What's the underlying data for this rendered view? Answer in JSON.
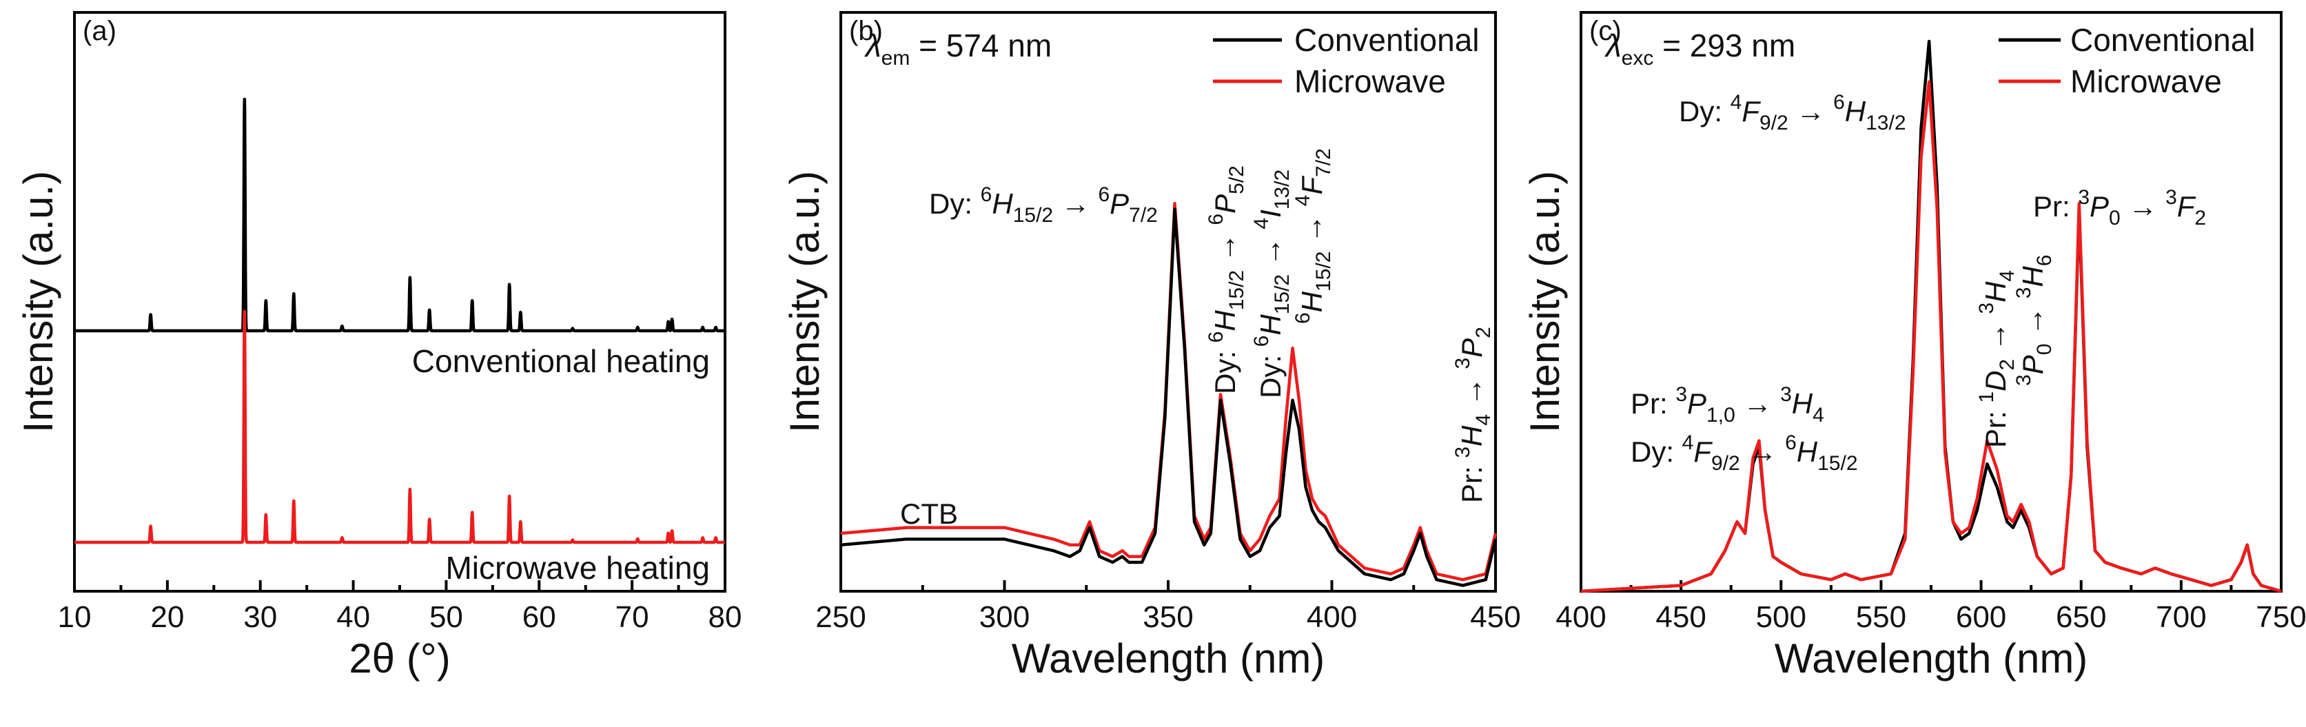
{
  "chart_data": [
    {
      "panel": "(a)",
      "type": "line",
      "xlabel": "2θ (°)",
      "ylabel": "Intensity (a.u.)",
      "xlim": [
        10,
        80
      ],
      "xticks": [
        10,
        20,
        30,
        40,
        50,
        60,
        70,
        80
      ],
      "xtick_labels": [
        "10",
        "20",
        "30",
        "40",
        "50",
        "60",
        "70",
        "80"
      ],
      "series": [
        {
          "name": "Conventional heating",
          "color": "#000000",
          "baseline": 0,
          "peaks": [
            [
              18.2,
              7
            ],
            [
              28.3,
              100
            ],
            [
              30.6,
              13
            ],
            [
              33.6,
              16
            ],
            [
              38.8,
              2
            ],
            [
              46.1,
              23
            ],
            [
              48.2,
              9
            ],
            [
              52.8,
              13
            ],
            [
              56.8,
              20
            ],
            [
              58.0,
              8
            ],
            [
              63.6,
              1
            ],
            [
              70.6,
              1.5
            ],
            [
              73.9,
              4
            ],
            [
              74.3,
              5
            ],
            [
              77.6,
              1.5
            ],
            [
              79.0,
              1.5
            ]
          ]
        },
        {
          "name": "Microwave heating",
          "color": "#ee1c1c",
          "baseline": 0,
          "peaks": [
            [
              18.2,
              7
            ],
            [
              28.3,
              100
            ],
            [
              30.6,
              12
            ],
            [
              33.6,
              18
            ],
            [
              38.8,
              2
            ],
            [
              46.1,
              23
            ],
            [
              48.2,
              10
            ],
            [
              52.8,
              13
            ],
            [
              56.8,
              20
            ],
            [
              58.0,
              9
            ],
            [
              63.6,
              1
            ],
            [
              70.6,
              1.5
            ],
            [
              73.9,
              4
            ],
            [
              74.3,
              5
            ],
            [
              77.6,
              2
            ],
            [
              79.0,
              2
            ]
          ]
        }
      ],
      "series_labels": [
        "Conventional heating",
        "Microwave heating"
      ]
    },
    {
      "panel": "(b)",
      "type": "line",
      "annotation_lambda": "= 574 nm",
      "lambda_symbol": "λ",
      "lambda_sub": "em",
      "xlabel": "Wavelength (nm)",
      "ylabel": "Intensity (a.u.)",
      "xlim": [
        250,
        450
      ],
      "ylim": [
        0,
        100
      ],
      "xticks": [
        250,
        300,
        350,
        400,
        450
      ],
      "xtick_labels": [
        "250",
        "300",
        "350",
        "400",
        "450"
      ],
      "legend": [
        "Conventional",
        "Microwave"
      ],
      "series": [
        {
          "name": "Conventional",
          "color": "#000000",
          "x": [
            250,
            270,
            300,
            315,
            320,
            323,
            326,
            329,
            333,
            336,
            338,
            342,
            346,
            349,
            352,
            355,
            358,
            361,
            363,
            366,
            369,
            372,
            375,
            378,
            381,
            384,
            386,
            388,
            390,
            392,
            394,
            396,
            398,
            402,
            410,
            418,
            422,
            425,
            427,
            429,
            432,
            440,
            447,
            450
          ],
          "y": [
            8,
            9,
            9,
            7,
            6,
            7,
            11,
            6,
            5,
            6,
            5,
            5,
            10,
            30,
            66,
            42,
            12,
            8,
            10,
            33,
            22,
            9,
            6,
            7,
            11,
            13,
            24,
            33,
            28,
            18,
            14,
            12,
            11,
            7,
            3,
            2,
            3,
            7,
            10,
            6,
            2,
            1,
            2,
            9
          ]
        },
        {
          "name": "Microwave",
          "color": "#ee1c1c",
          "x": [
            250,
            270,
            300,
            315,
            320,
            323,
            326,
            329,
            333,
            336,
            338,
            342,
            346,
            349,
            352,
            355,
            358,
            361,
            363,
            366,
            369,
            372,
            375,
            378,
            381,
            384,
            386,
            388,
            390,
            392,
            394,
            396,
            398,
            402,
            410,
            418,
            422,
            425,
            427,
            429,
            432,
            440,
            447,
            450
          ],
          "y": [
            10,
            11,
            11,
            9,
            8,
            8,
            12,
            7,
            6,
            7,
            6,
            6,
            11,
            31,
            67,
            43,
            13,
            9,
            11,
            34,
            23,
            10,
            7,
            9,
            13,
            16,
            30,
            42,
            33,
            21,
            16,
            14,
            13,
            8,
            4,
            3,
            4,
            8,
            11,
            7,
            3,
            2,
            3,
            10
          ]
        }
      ],
      "annotations": {
        "ctb": "CTB",
        "pr_element": "Pr:",
        "dy_element": "Dy:",
        "arrow": "→",
        "t1": [
          "6",
          "H",
          "15/2",
          "6",
          "P",
          "7/2"
        ],
        "t2": [
          "6",
          "H",
          "15/2",
          "6",
          "P",
          "5/2"
        ],
        "t3": [
          "6",
          "H",
          "15/2",
          "4",
          "I",
          "13/2"
        ],
        "t4": [
          "6",
          "H",
          "15/2",
          "4",
          "F",
          "7/2"
        ],
        "t5": [
          "3",
          "H",
          "4",
          "3",
          "P",
          "2"
        ]
      }
    },
    {
      "panel": "(c)",
      "type": "line",
      "annotation_lambda": "= 293 nm",
      "lambda_symbol": "λ",
      "lambda_sub": "exc",
      "xlabel": "Wavelength (nm)",
      "ylabel": "Intensity (a.u.)",
      "xlim": [
        400,
        750
      ],
      "ylim": [
        0,
        100
      ],
      "xticks": [
        400,
        450,
        500,
        550,
        600,
        650,
        700,
        750
      ],
      "xtick_labels": [
        "400",
        "450",
        "500",
        "550",
        "600",
        "650",
        "700",
        "750"
      ],
      "legend": [
        "Conventional",
        "Microwave"
      ],
      "series": [
        {
          "name": "Conventional",
          "color": "#000000",
          "x": [
            400,
            450,
            465,
            472,
            478,
            482,
            486,
            489,
            492,
            496,
            500,
            510,
            525,
            532,
            540,
            555,
            562,
            566,
            570,
            574,
            578,
            582,
            586,
            590,
            594,
            598,
            603,
            608,
            613,
            616,
            620,
            624,
            628,
            635,
            641,
            645,
            649,
            653,
            657,
            662,
            670,
            680,
            687,
            695,
            705,
            715,
            725,
            730,
            733,
            736,
            740,
            750
          ],
          "y": [
            0,
            1,
            3,
            7,
            12,
            10,
            22,
            25,
            14,
            6,
            5,
            3,
            2,
            3,
            2,
            3,
            10,
            40,
            80,
            95,
            70,
            25,
            12,
            9,
            10,
            14,
            22,
            18,
            12,
            11,
            14,
            11,
            6,
            3,
            4,
            20,
            66,
            25,
            7,
            5,
            4,
            3,
            4,
            3,
            2,
            1,
            2,
            5,
            8,
            3,
            1,
            0
          ]
        },
        {
          "name": "Microwave",
          "color": "#ee1c1c",
          "x": [
            400,
            450,
            465,
            472,
            478,
            482,
            486,
            489,
            492,
            496,
            500,
            510,
            525,
            532,
            540,
            555,
            562,
            566,
            570,
            574,
            578,
            582,
            586,
            590,
            594,
            598,
            603,
            608,
            613,
            616,
            620,
            624,
            628,
            635,
            641,
            645,
            649,
            653,
            657,
            662,
            670,
            680,
            687,
            695,
            705,
            715,
            725,
            730,
            733,
            736,
            740,
            750
          ],
          "y": [
            0,
            1,
            3,
            7,
            12,
            10,
            23,
            26,
            14,
            6,
            5,
            3,
            2,
            3,
            2,
            3,
            9,
            38,
            75,
            88,
            66,
            24,
            12,
            10,
            11,
            16,
            26,
            21,
            13,
            12,
            15,
            12,
            6,
            3,
            4,
            20,
            67,
            26,
            7,
            5,
            4,
            3,
            4,
            3,
            2,
            1,
            2,
            5,
            8,
            3,
            1,
            0
          ]
        }
      ],
      "annotations": {
        "pr_element": "Pr:",
        "dy_element": "Dy:",
        "arrow": "→",
        "t1": [
          "4",
          "F",
          "9/2",
          "6",
          "H",
          "13/2"
        ],
        "t2": [
          "3",
          "P",
          "1,0",
          "3",
          "H",
          "4"
        ],
        "t3": [
          "4",
          "F",
          "9/2",
          "6",
          "H",
          "15/2"
        ],
        "t4": [
          "1",
          "D",
          "2",
          "3",
          "H",
          "4"
        ],
        "t5": [
          "3",
          "P",
          "0",
          "3",
          "H",
          "6"
        ],
        "t6": [
          "3",
          "P",
          "0",
          "3",
          "F",
          "2"
        ]
      }
    }
  ]
}
